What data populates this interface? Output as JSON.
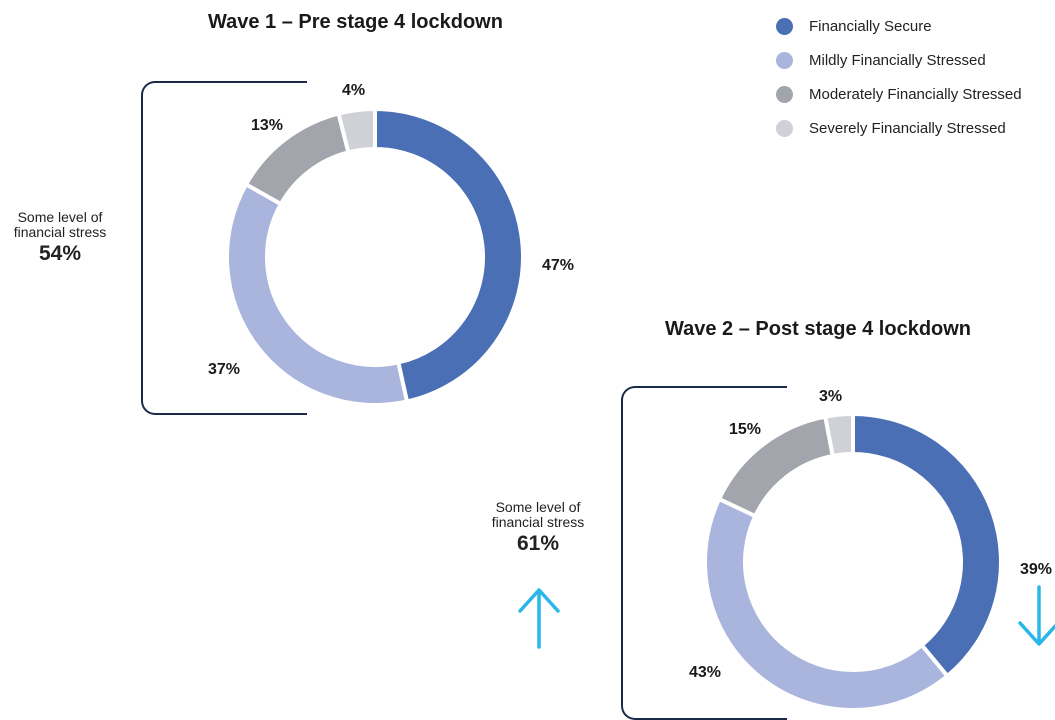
{
  "legend": [
    {
      "label": "Financially Secure",
      "color": "#4a6fb5"
    },
    {
      "label": "Mildly Financially Stressed",
      "color": "#a9b5dc"
    },
    {
      "label": "Moderately Financially Stressed",
      "color": "#a2a5ac"
    },
    {
      "label": "Severely Financially Stressed",
      "color": "#d0d1d6"
    }
  ],
  "wave1": {
    "title": "Wave 1 – Pre stage 4 lockdown",
    "callout": {
      "text": "Some level of financial stress",
      "value": "54%"
    }
  },
  "wave2": {
    "title": "Wave 2 – Post stage 4 lockdown",
    "callout": {
      "text": "Some level of financial stress",
      "value": "61%"
    },
    "trend": {
      "stress": "up",
      "secure": "down"
    },
    "arrow_color": "#29b6e8"
  },
  "chart_data": [
    {
      "type": "pie",
      "title": "Wave 1 – Pre stage 4 lockdown",
      "donut": true,
      "categories": [
        "Financially Secure",
        "Mildly Financially Stressed",
        "Moderately Financially Stressed",
        "Severely Financially Stressed"
      ],
      "values": [
        47,
        37,
        13,
        4
      ],
      "labels": [
        "47%",
        "37%",
        "13%",
        "4%"
      ],
      "colors": [
        "#4a6fb5",
        "#a9b5dc",
        "#a2a5ac",
        "#d0d1d6"
      ]
    },
    {
      "type": "pie",
      "title": "Wave 2 – Post stage 4 lockdown",
      "donut": true,
      "categories": [
        "Financially Secure",
        "Mildly Financially Stressed",
        "Moderately Financially Stressed",
        "Severely Financially Stressed"
      ],
      "values": [
        39,
        43,
        15,
        3
      ],
      "labels": [
        "39%",
        "43%",
        "15%",
        "3%"
      ],
      "colors": [
        "#4a6fb5",
        "#a9b5dc",
        "#a2a5ac",
        "#d0d1d6"
      ]
    }
  ]
}
